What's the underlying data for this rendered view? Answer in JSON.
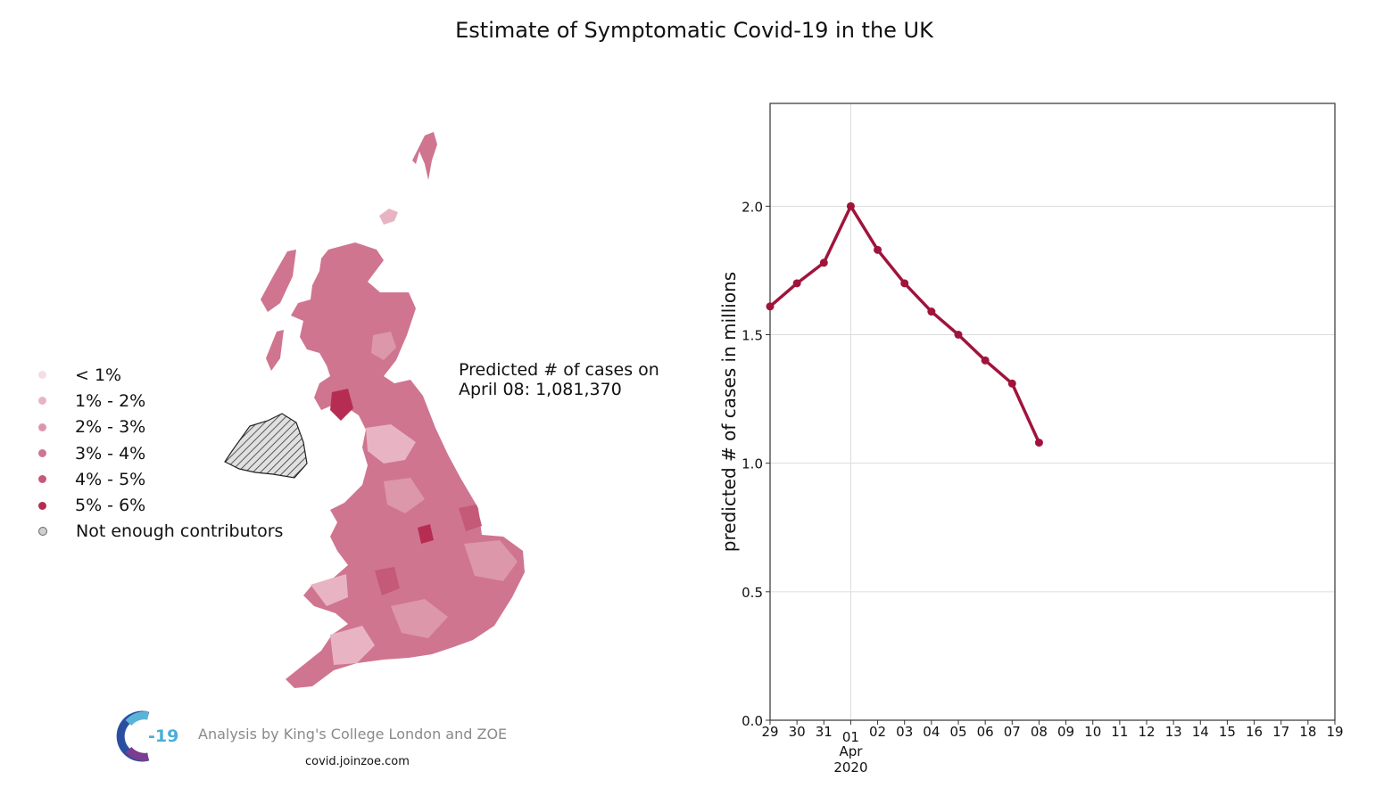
{
  "title": "Estimate of Symptomatic Covid-19 in the UK",
  "legend": [
    {
      "label": "< 1%",
      "color": "#f6dde4"
    },
    {
      "label": "1% - 2%",
      "color": "#e8b4c3"
    },
    {
      "label": "2% - 3%",
      "color": "#dc97ab"
    },
    {
      "label": "3% - 4%",
      "color": "#cf7590"
    },
    {
      "label": "4% - 5%",
      "color": "#c45a77"
    },
    {
      "label": "5% - 6%",
      "color": "#b72d52"
    },
    {
      "label": "Not enough contributors",
      "color": "#cfcfcf"
    }
  ],
  "prediction": {
    "line1": "Predicted # of cases on",
    "line2": "April 08: 1,081,370"
  },
  "credit": "Analysis by King's College London and ZOE",
  "url": "covid.joinzoe.com",
  "logo_text": "-19",
  "map_colors": {
    "main": "#cf7590",
    "light": "#dc97ab",
    "dark": "#b72d52",
    "hatched": "#cfcfcf"
  },
  "chart_data": {
    "type": "line",
    "ylabel": "predicted # of cases in millions",
    "xlabel": "",
    "line_color": "#a0143c",
    "grid": true,
    "ylim": [
      0.0,
      2.4
    ],
    "yticks": [
      "0.0",
      "0.5",
      "1.0",
      "1.5",
      "2.0"
    ],
    "xtick_labels": [
      "29",
      "30",
      "31",
      "01",
      "02",
      "03",
      "04",
      "05",
      "06",
      "07",
      "08",
      "09",
      "10",
      "11",
      "12",
      "13",
      "14",
      "15",
      "16",
      "17",
      "18",
      "19"
    ],
    "x_month_label": "Apr",
    "x_year_label": "2020",
    "x_dates": [
      "2020-03-29",
      "2020-03-30",
      "2020-03-31",
      "2020-04-01",
      "2020-04-02",
      "2020-04-03",
      "2020-04-04",
      "2020-04-05",
      "2020-04-06",
      "2020-04-07",
      "2020-04-08"
    ],
    "series": [
      {
        "values": [
          1.61,
          1.7,
          1.78,
          2.0,
          1.83,
          1.7,
          1.59,
          1.5,
          1.4,
          1.31,
          1.08
        ]
      }
    ]
  }
}
